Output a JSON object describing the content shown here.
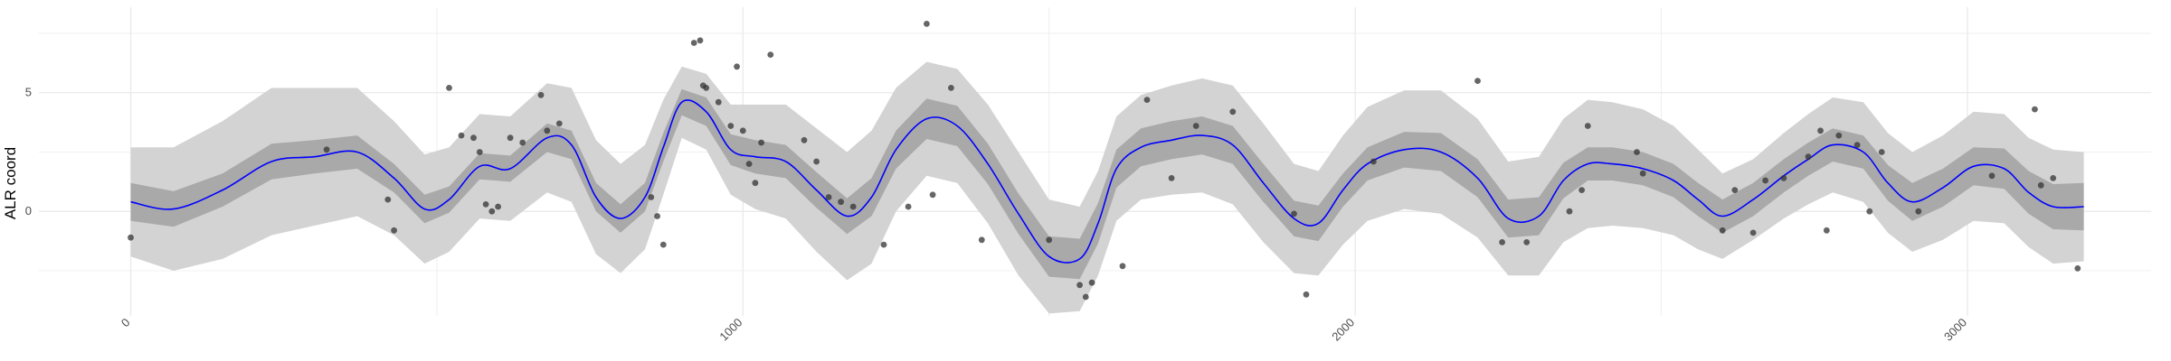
{
  "chart_data": {
    "type": "line",
    "title": "",
    "xlabel": "",
    "ylabel": "ALR coord",
    "xlim": [
      -150,
      3300
    ],
    "ylim": [
      -4.4,
      8.6
    ],
    "x_ticks": [
      0,
      1000,
      2000,
      3000
    ],
    "x_tick_labels": [
      "0",
      "1000",
      "2000",
      "3000"
    ],
    "y_ticks": [
      0,
      5
    ],
    "y_tick_labels": [
      "0",
      "5"
    ],
    "grid": true,
    "legend": "none",
    "colors": {
      "line": "#0000ff",
      "band_outer": "#d3d3d3",
      "band_inner": "#a9a9a9",
      "points": "#333333",
      "grid": "#ebebeb"
    },
    "series": [
      {
        "role": "smooth-fit",
        "x": [
          0,
          70,
          150,
          230,
          300,
          370,
          430,
          480,
          520,
          570,
          620,
          680,
          720,
          760,
          800,
          840,
          870,
          900,
          940,
          980,
          1020,
          1070,
          1120,
          1170,
          1210,
          1250,
          1300,
          1350,
          1400,
          1450,
          1500,
          1550,
          1580,
          1610,
          1650,
          1700,
          1750,
          1800,
          1850,
          1900,
          1940,
          1980,
          2020,
          2080,
          2140,
          2200,
          2250,
          2300,
          2340,
          2380,
          2420,
          2470,
          2520,
          2560,
          2600,
          2650,
          2700,
          2740,
          2780,
          2830,
          2870,
          2910,
          2960,
          3010,
          3060,
          3100,
          3140,
          3190
        ],
        "fit": [
          0.4,
          0.1,
          0.9,
          2.1,
          2.3,
          2.5,
          1.4,
          0.1,
          0.5,
          1.9,
          1.8,
          3.1,
          2.8,
          0.6,
          -0.3,
          0.6,
          2.7,
          4.6,
          4.2,
          2.6,
          2.3,
          2.1,
          0.9,
          -0.2,
          0.6,
          2.6,
          3.9,
          3.6,
          2.0,
          -0.1,
          -1.9,
          -2.0,
          -0.5,
          1.8,
          2.7,
          3.0,
          3.2,
          2.8,
          1.2,
          -0.3,
          -0.5,
          0.9,
          2.0,
          2.6,
          2.5,
          1.4,
          -0.3,
          -0.2,
          1.3,
          2.0,
          2.0,
          1.8,
          1.3,
          0.5,
          -0.2,
          0.5,
          1.5,
          2.2,
          2.8,
          2.5,
          1.2,
          0.4,
          1.0,
          1.9,
          1.8,
          0.8,
          0.2,
          0.2
        ],
        "inner_halfwidth": [
          0.8,
          0.75,
          0.7,
          0.75,
          0.7,
          0.7,
          0.6,
          0.6,
          0.55,
          0.55,
          0.55,
          0.6,
          0.6,
          0.6,
          0.6,
          0.6,
          0.6,
          0.55,
          0.6,
          0.65,
          0.7,
          0.7,
          0.75,
          0.75,
          0.8,
          0.8,
          0.85,
          0.85,
          0.85,
          0.85,
          0.85,
          0.85,
          0.85,
          0.8,
          0.8,
          0.8,
          0.8,
          0.8,
          0.8,
          0.75,
          0.75,
          0.7,
          0.7,
          0.75,
          0.8,
          0.8,
          0.8,
          0.8,
          0.75,
          0.7,
          0.7,
          0.7,
          0.7,
          0.7,
          0.7,
          0.7,
          0.7,
          0.7,
          0.7,
          0.7,
          0.75,
          0.8,
          0.8,
          0.8,
          0.85,
          0.9,
          0.95,
          1.0
        ],
        "outer_halfwidth": [
          2.3,
          2.6,
          2.9,
          3.1,
          2.9,
          2.7,
          2.4,
          2.3,
          2.2,
          2.2,
          2.2,
          2.3,
          2.4,
          2.4,
          2.3,
          2.2,
          2.0,
          1.5,
          1.6,
          1.9,
          2.2,
          2.4,
          2.6,
          2.7,
          2.8,
          2.6,
          2.4,
          2.4,
          2.5,
          2.6,
          2.4,
          2.2,
          2.2,
          2.2,
          2.2,
          2.3,
          2.4,
          2.5,
          2.5,
          2.3,
          2.2,
          2.3,
          2.4,
          2.5,
          2.6,
          2.5,
          2.4,
          2.5,
          2.6,
          2.7,
          2.6,
          2.5,
          2.3,
          2.1,
          1.8,
          1.7,
          1.8,
          1.9,
          2.0,
          2.1,
          2.1,
          2.1,
          2.2,
          2.3,
          2.3,
          2.3,
          2.4,
          2.3
        ]
      },
      {
        "role": "observations",
        "x": [
          0,
          320,
          420,
          430,
          520,
          540,
          560,
          570,
          580,
          590,
          600,
          620,
          640,
          670,
          680,
          700,
          850,
          860,
          870,
          920,
          930,
          935,
          940,
          960,
          980,
          990,
          1000,
          1010,
          1020,
          1030,
          1045,
          1100,
          1120,
          1140,
          1160,
          1180,
          1230,
          1270,
          1300,
          1310,
          1340,
          1390,
          1500,
          1550,
          1560,
          1570,
          1620,
          1660,
          1700,
          1740,
          1800,
          1900,
          1920,
          2030,
          2200,
          2240,
          2280,
          2350,
          2370,
          2380,
          2460,
          2470,
          2600,
          2620,
          2650,
          2670,
          2700,
          2740,
          2760,
          2770,
          2790,
          2820,
          2840,
          2860,
          2920,
          3040,
          3110,
          3120,
          3140,
          3180
        ],
        "y": [
          -1.1,
          2.6,
          0.5,
          -0.8,
          5.2,
          3.2,
          3.1,
          2.5,
          0.3,
          0.0,
          0.2,
          3.1,
          2.9,
          4.9,
          3.4,
          3.7,
          0.6,
          -0.2,
          -1.4,
          7.1,
          7.2,
          5.3,
          5.2,
          4.6,
          3.6,
          6.1,
          3.4,
          2.0,
          1.2,
          2.9,
          6.6,
          3.0,
          2.1,
          0.6,
          0.4,
          0.2,
          -1.4,
          0.2,
          7.9,
          0.7,
          5.2,
          -1.2,
          -1.2,
          -3.1,
          -3.6,
          -3.0,
          -2.3,
          4.7,
          1.4,
          3.6,
          4.2,
          -0.1,
          -3.5,
          2.1,
          5.5,
          -1.3,
          -1.3,
          0.0,
          0.9,
          3.6,
          2.5,
          1.6,
          -0.8,
          0.9,
          -0.9,
          1.3,
          1.4,
          2.3,
          3.4,
          -0.8,
          3.2,
          2.8,
          0.0,
          2.5,
          0.0,
          1.5,
          4.3,
          1.1,
          1.4,
          -2.4
        ]
      }
    ]
  }
}
